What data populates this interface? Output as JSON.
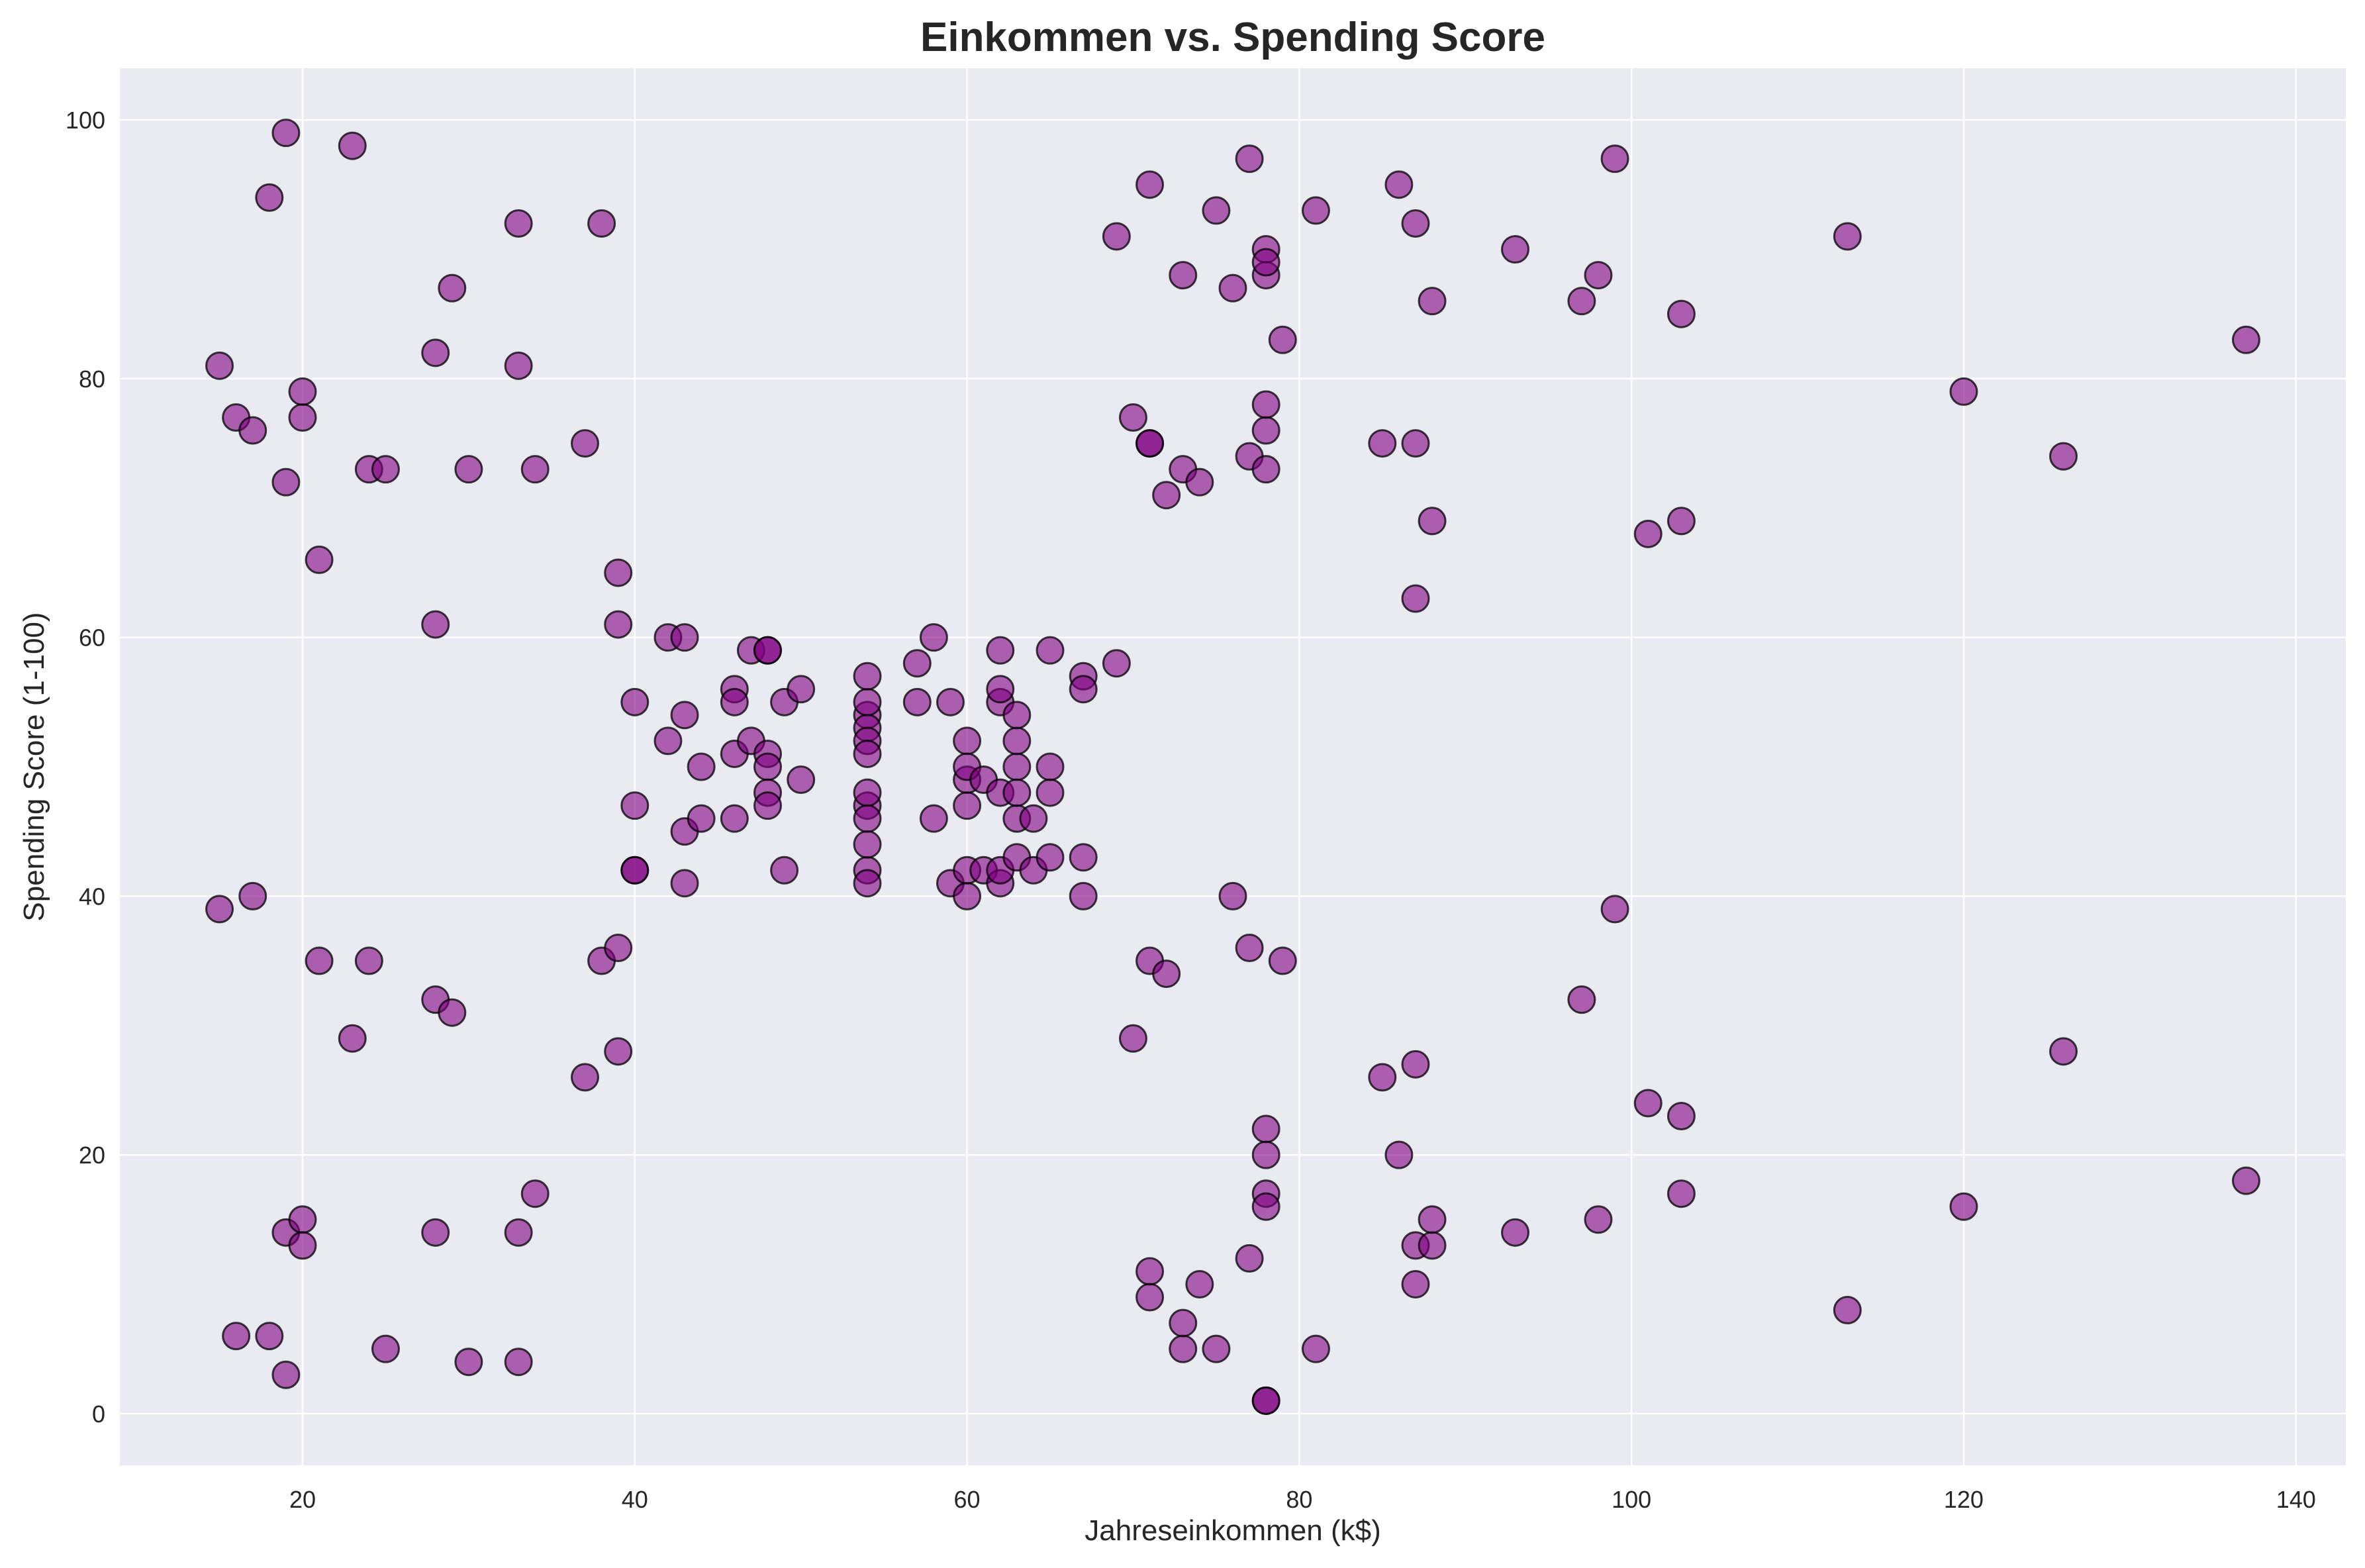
{
  "chart_data": {
    "type": "scatter",
    "title": "Einkommen vs. Spending Score",
    "xlabel": "Jahreseinkommen (k$)",
    "ylabel": "Spending Score (1-100)",
    "xlim": [
      9,
      143
    ],
    "ylim": [
      -4,
      104
    ],
    "xticks": [
      20,
      40,
      60,
      80,
      100,
      120,
      140
    ],
    "yticks": [
      0,
      20,
      40,
      60,
      80,
      100
    ],
    "grid": true,
    "legend": "none",
    "colors": {
      "background": "#eaeaf2",
      "grid": "#ffffff",
      "marker_fill": "#800080",
      "marker_edge": "#000000",
      "text": "#262626"
    },
    "points": [
      [
        15,
        39
      ],
      [
        15,
        81
      ],
      [
        16,
        6
      ],
      [
        16,
        77
      ],
      [
        17,
        40
      ],
      [
        17,
        76
      ],
      [
        18,
        6
      ],
      [
        18,
        94
      ],
      [
        19,
        3
      ],
      [
        19,
        72
      ],
      [
        19,
        14
      ],
      [
        19,
        99
      ],
      [
        20,
        15
      ],
      [
        20,
        77
      ],
      [
        20,
        13
      ],
      [
        20,
        79
      ],
      [
        21,
        35
      ],
      [
        21,
        66
      ],
      [
        23,
        29
      ],
      [
        23,
        98
      ],
      [
        24,
        35
      ],
      [
        24,
        73
      ],
      [
        25,
        5
      ],
      [
        25,
        73
      ],
      [
        28,
        14
      ],
      [
        28,
        82
      ],
      [
        28,
        32
      ],
      [
        28,
        61
      ],
      [
        29,
        31
      ],
      [
        29,
        87
      ],
      [
        30,
        4
      ],
      [
        30,
        73
      ],
      [
        33,
        4
      ],
      [
        33,
        92
      ],
      [
        33,
        14
      ],
      [
        33,
        81
      ],
      [
        34,
        17
      ],
      [
        34,
        73
      ],
      [
        37,
        26
      ],
      [
        37,
        75
      ],
      [
        38,
        35
      ],
      [
        38,
        92
      ],
      [
        39,
        36
      ],
      [
        39,
        61
      ],
      [
        39,
        28
      ],
      [
        39,
        65
      ],
      [
        40,
        55
      ],
      [
        40,
        47
      ],
      [
        40,
        42
      ],
      [
        40,
        42
      ],
      [
        42,
        52
      ],
      [
        42,
        60
      ],
      [
        43,
        54
      ],
      [
        43,
        60
      ],
      [
        43,
        45
      ],
      [
        43,
        41
      ],
      [
        44,
        50
      ],
      [
        44,
        46
      ],
      [
        46,
        51
      ],
      [
        46,
        46
      ],
      [
        46,
        56
      ],
      [
        46,
        55
      ],
      [
        47,
        52
      ],
      [
        47,
        59
      ],
      [
        48,
        51
      ],
      [
        48,
        59
      ],
      [
        48,
        50
      ],
      [
        48,
        48
      ],
      [
        48,
        59
      ],
      [
        48,
        47
      ],
      [
        49,
        55
      ],
      [
        49,
        42
      ],
      [
        50,
        49
      ],
      [
        50,
        56
      ],
      [
        54,
        47
      ],
      [
        54,
        54
      ],
      [
        54,
        53
      ],
      [
        54,
        48
      ],
      [
        54,
        52
      ],
      [
        54,
        42
      ],
      [
        54,
        51
      ],
      [
        54,
        55
      ],
      [
        54,
        41
      ],
      [
        54,
        44
      ],
      [
        54,
        57
      ],
      [
        54,
        46
      ],
      [
        57,
        58
      ],
      [
        57,
        55
      ],
      [
        58,
        60
      ],
      [
        58,
        46
      ],
      [
        59,
        55
      ],
      [
        59,
        41
      ],
      [
        60,
        49
      ],
      [
        60,
        40
      ],
      [
        60,
        42
      ],
      [
        60,
        52
      ],
      [
        60,
        47
      ],
      [
        60,
        50
      ],
      [
        61,
        42
      ],
      [
        61,
        49
      ],
      [
        62,
        41
      ],
      [
        62,
        48
      ],
      [
        62,
        59
      ],
      [
        62,
        55
      ],
      [
        62,
        56
      ],
      [
        62,
        42
      ],
      [
        63,
        50
      ],
      [
        63,
        46
      ],
      [
        63,
        43
      ],
      [
        63,
        48
      ],
      [
        63,
        52
      ],
      [
        63,
        54
      ],
      [
        64,
        42
      ],
      [
        64,
        46
      ],
      [
        65,
        48
      ],
      [
        65,
        50
      ],
      [
        65,
        43
      ],
      [
        65,
        59
      ],
      [
        67,
        43
      ],
      [
        67,
        57
      ],
      [
        67,
        56
      ],
      [
        67,
        40
      ],
      [
        69,
        58
      ],
      [
        69,
        91
      ],
      [
        70,
        29
      ],
      [
        70,
        77
      ],
      [
        71,
        35
      ],
      [
        71,
        95
      ],
      [
        71,
        11
      ],
      [
        71,
        75
      ],
      [
        71,
        9
      ],
      [
        71,
        75
      ],
      [
        72,
        34
      ],
      [
        72,
        71
      ],
      [
        73,
        5
      ],
      [
        73,
        88
      ],
      [
        73,
        7
      ],
      [
        73,
        73
      ],
      [
        74,
        10
      ],
      [
        74,
        72
      ],
      [
        75,
        5
      ],
      [
        75,
        93
      ],
      [
        76,
        40
      ],
      [
        76,
        87
      ],
      [
        77,
        12
      ],
      [
        77,
        97
      ],
      [
        77,
        36
      ],
      [
        77,
        74
      ],
      [
        78,
        22
      ],
      [
        78,
        90
      ],
      [
        78,
        17
      ],
      [
        78,
        88
      ],
      [
        78,
        20
      ],
      [
        78,
        76
      ],
      [
        78,
        16
      ],
      [
        78,
        89
      ],
      [
        78,
        1
      ],
      [
        78,
        78
      ],
      [
        78,
        1
      ],
      [
        78,
        73
      ],
      [
        79,
        35
      ],
      [
        79,
        83
      ],
      [
        81,
        5
      ],
      [
        81,
        93
      ],
      [
        85,
        26
      ],
      [
        85,
        75
      ],
      [
        86,
        20
      ],
      [
        86,
        95
      ],
      [
        87,
        27
      ],
      [
        87,
        63
      ],
      [
        87,
        13
      ],
      [
        87,
        75
      ],
      [
        87,
        10
      ],
      [
        87,
        92
      ],
      [
        88,
        13
      ],
      [
        88,
        86
      ],
      [
        88,
        15
      ],
      [
        88,
        69
      ],
      [
        93,
        14
      ],
      [
        93,
        90
      ],
      [
        97,
        32
      ],
      [
        97,
        86
      ],
      [
        98,
        15
      ],
      [
        98,
        88
      ],
      [
        99,
        39
      ],
      [
        99,
        97
      ],
      [
        101,
        24
      ],
      [
        101,
        68
      ],
      [
        103,
        17
      ],
      [
        103,
        85
      ],
      [
        103,
        23
      ],
      [
        103,
        69
      ],
      [
        113,
        8
      ],
      [
        113,
        91
      ],
      [
        120,
        16
      ],
      [
        120,
        79
      ],
      [
        126,
        28
      ],
      [
        126,
        74
      ],
      [
        137,
        18
      ],
      [
        137,
        83
      ]
    ]
  }
}
